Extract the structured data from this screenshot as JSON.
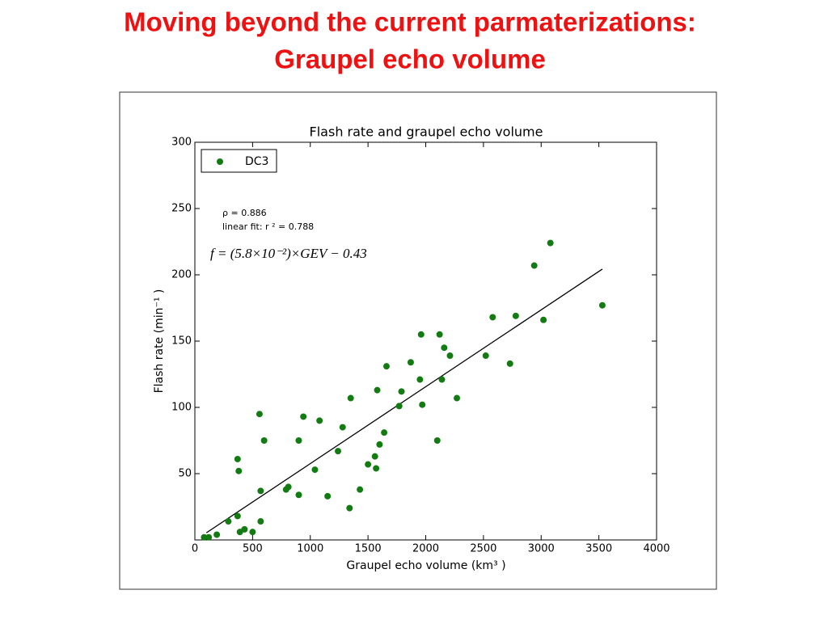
{
  "slide": {
    "title_lines": [
      "Moving beyond the current parmaterizations:",
      "Graupel echo volume"
    ]
  },
  "chart_data": {
    "type": "scatter",
    "title": "Flash rate and graupel echo volume",
    "xlabel": "Graupel echo volume (km³ )",
    "ylabel": "Flash rate (min⁻¹ )",
    "xlim": [
      0,
      4000
    ],
    "xticks": [
      0,
      500,
      1000,
      1500,
      2000,
      2500,
      3000,
      3500,
      4000
    ],
    "ylim": [
      0,
      300
    ],
    "yticks": [
      50,
      100,
      150,
      200,
      250,
      300
    ],
    "legend": "upper left",
    "annotations": [
      "ρ = 0.886",
      "linear fit: r ² = 0.788",
      "f = (5.8×10⁻²)×GEV − 0.43"
    ],
    "series": [
      {
        "name": "DC3",
        "color": "#127c12",
        "x": [
          80,
          120,
          190,
          290,
          370,
          370,
          380,
          390,
          430,
          500,
          560,
          570,
          570,
          600,
          790,
          810,
          900,
          900,
          940,
          1040,
          1080,
          1150,
          1240,
          1280,
          1340,
          1350,
          1430,
          1500,
          1560,
          1570,
          1580,
          1600,
          1640,
          1660,
          1770,
          1790,
          1870,
          1950,
          1960,
          1970,
          2100,
          2120,
          2140,
          2160,
          2210,
          2270,
          2520,
          2580,
          2730,
          2780,
          2940,
          3020,
          3080,
          3530
        ],
        "values": [
          2,
          2,
          4,
          14,
          18,
          61,
          52,
          6,
          8,
          6,
          95,
          37,
          14,
          75,
          38,
          40,
          34,
          75,
          93,
          53,
          90,
          33,
          67,
          85,
          24,
          107,
          38,
          57,
          63,
          54,
          113,
          72,
          81,
          131,
          101,
          112,
          134,
          121,
          155,
          102,
          75,
          155,
          121,
          145,
          139,
          107,
          139,
          168,
          133,
          169,
          207,
          166,
          224,
          177
        ]
      }
    ],
    "fit_line": {
      "color": "#000000",
      "x": [
        100,
        3530
      ],
      "values": [
        5.4,
        204.3
      ]
    }
  }
}
